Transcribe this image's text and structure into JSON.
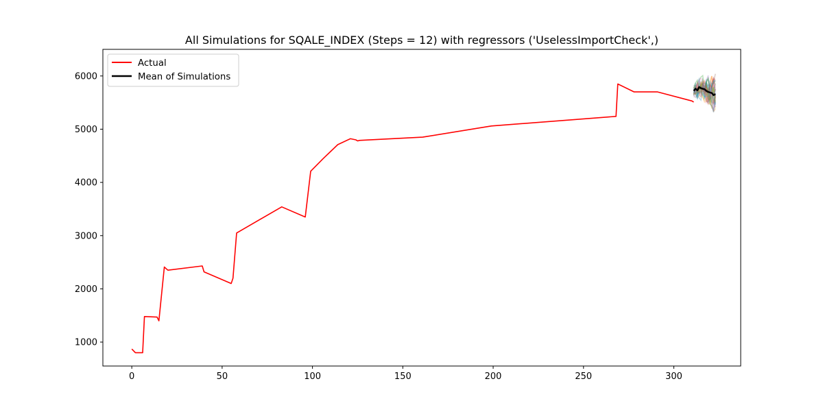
{
  "chart_data": {
    "type": "line",
    "title": "All Simulations for SQALE_INDEX (Steps = 12) with regressors ('UselessImportCheck',)",
    "xlabel": "",
    "ylabel": "",
    "xlim": [
      -16,
      337
    ],
    "ylim": [
      550,
      6500
    ],
    "xticks": [
      0,
      50,
      100,
      150,
      200,
      250,
      300
    ],
    "yticks": [
      1000,
      2000,
      3000,
      4000,
      5000,
      6000
    ],
    "grid": false,
    "legend": {
      "placement": "top-left",
      "entries": [
        {
          "label": "Actual",
          "color": "#ff0000"
        },
        {
          "label": "Mean of Simulations",
          "color": "#000000"
        }
      ]
    },
    "actual": {
      "name": "Actual",
      "color": "#ff0000",
      "x": [
        0,
        2,
        6,
        7,
        14,
        15,
        18,
        20,
        39,
        40,
        55,
        56,
        58,
        83,
        96,
        99,
        106,
        114,
        121,
        124,
        125,
        126,
        161,
        199,
        268,
        269,
        278,
        291,
        310,
        311
      ],
      "y": [
        870,
        800,
        800,
        1480,
        1470,
        1400,
        2410,
        2350,
        2430,
        2320,
        2100,
        2200,
        3050,
        3540,
        3350,
        4210,
        4450,
        4710,
        4820,
        4800,
        4780,
        4790,
        4850,
        5060,
        5240,
        5850,
        5700,
        5700,
        5530,
        5510
      ]
    },
    "mean_of_simulations": {
      "name": "Mean of Simulations",
      "color": "#000000",
      "x": [
        311,
        312,
        313,
        314,
        315,
        316,
        317,
        318,
        319,
        320,
        321,
        322,
        323
      ],
      "y": [
        5720,
        5760,
        5730,
        5790,
        5770,
        5760,
        5750,
        5720,
        5700,
        5690,
        5680,
        5640,
        5660
      ]
    },
    "simulations": {
      "count": 30,
      "x_start": 311,
      "x_end": 323,
      "low": 5150,
      "high": 6200,
      "colors": [
        "#1f77b4",
        "#ff7f0e",
        "#2ca02c",
        "#d62728",
        "#9467bd",
        "#8c564b",
        "#e377c2",
        "#7f7f7f",
        "#bcbd22",
        "#17becf"
      ]
    }
  }
}
